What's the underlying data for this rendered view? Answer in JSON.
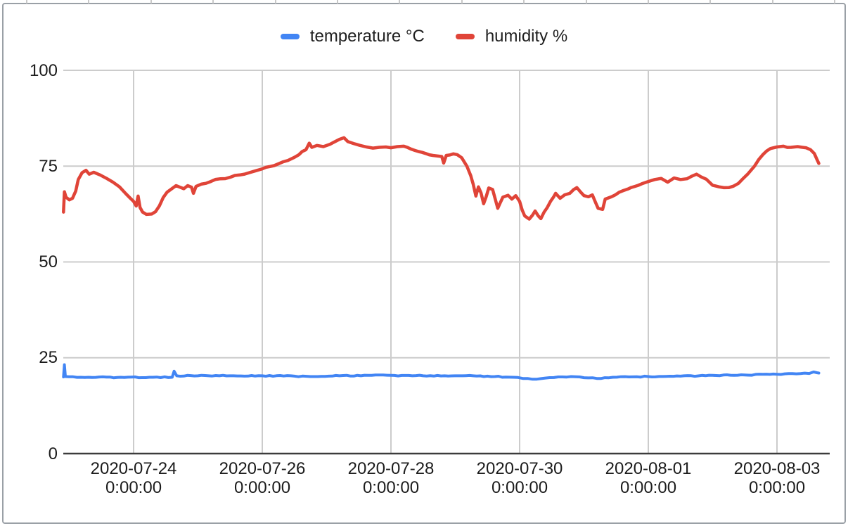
{
  "chart": {
    "background": "#ffffff",
    "border_color": "#9aa0a6",
    "grid_color": "#cccccc",
    "axis_line_color": "#3c3c3c",
    "text_color": "#1c1c1c",
    "spreadsheet_stub_color": "#c9c9c9"
  },
  "legend": {
    "items": [
      {
        "label": "temperature °C",
        "color": "#4285F4"
      },
      {
        "label": "humidity %",
        "color": "#E04438"
      }
    ]
  },
  "chart_data": {
    "type": "line",
    "title": "",
    "xlabel": "",
    "ylabel": "",
    "grid": true,
    "legend_position": "top-center",
    "y_axis_ticks": [
      100,
      75,
      50,
      25,
      0
    ],
    "ylim": [
      0,
      100
    ],
    "x_unit": "days since 2020-07-23 00:00:00",
    "xlim_days": [
      -0.093,
      11.82
    ],
    "x_axis_ticks": [
      {
        "t": 1,
        "line1": "2020-07-24",
        "line2": "0:00:00"
      },
      {
        "t": 3,
        "line1": "2020-07-26",
        "line2": "0:00:00"
      },
      {
        "t": 5,
        "line1": "2020-07-28",
        "line2": "0:00:00"
      },
      {
        "t": 7,
        "line1": "2020-07-30",
        "line2": "0:00:00"
      },
      {
        "t": 9,
        "line1": "2020-08-01",
        "line2": "0:00:00"
      },
      {
        "t": 11,
        "line1": "2020-08-03",
        "line2": "0:00:00"
      }
    ],
    "series": [
      {
        "name": "temperature °C",
        "color": "#4285F4",
        "points": [
          [
            -0.09,
            20.0
          ],
          [
            -0.075,
            23.2
          ],
          [
            -0.06,
            20.1
          ],
          [
            0.3,
            19.9
          ],
          [
            0.8,
            19.9
          ],
          [
            1.3,
            19.9
          ],
          [
            1.6,
            19.9
          ],
          [
            1.63,
            21.5
          ],
          [
            1.67,
            20.3
          ],
          [
            2.0,
            20.3
          ],
          [
            2.5,
            20.3
          ],
          [
            3.0,
            20.3
          ],
          [
            3.5,
            20.2
          ],
          [
            3.75,
            20.1
          ],
          [
            4.2,
            20.3
          ],
          [
            4.7,
            20.4
          ],
          [
            5.0,
            20.4
          ],
          [
            5.5,
            20.3
          ],
          [
            6.0,
            20.3
          ],
          [
            6.5,
            20.2
          ],
          [
            6.9,
            19.9
          ],
          [
            7.05,
            19.6
          ],
          [
            7.2,
            19.4
          ],
          [
            7.4,
            19.7
          ],
          [
            7.6,
            20.0
          ],
          [
            7.8,
            20.1
          ],
          [
            8.0,
            19.8
          ],
          [
            8.2,
            19.6
          ],
          [
            8.45,
            19.9
          ],
          [
            8.7,
            20.0
          ],
          [
            9.0,
            20.1
          ],
          [
            9.5,
            20.2
          ],
          [
            10.0,
            20.4
          ],
          [
            10.5,
            20.5
          ],
          [
            11.0,
            20.7
          ],
          [
            11.3,
            20.8
          ],
          [
            11.5,
            20.9
          ],
          [
            11.57,
            21.3
          ],
          [
            11.62,
            21.1
          ],
          [
            11.65,
            21.0
          ]
        ]
      },
      {
        "name": "humidity %",
        "color": "#E04438",
        "points": [
          [
            -0.09,
            63.0
          ],
          [
            -0.075,
            68.3
          ],
          [
            -0.05,
            66.9
          ],
          [
            0.0,
            66.2
          ],
          [
            0.05,
            66.6
          ],
          [
            0.1,
            68.5
          ],
          [
            0.14,
            71.5
          ],
          [
            0.2,
            73.3
          ],
          [
            0.26,
            73.9
          ],
          [
            0.31,
            72.9
          ],
          [
            0.38,
            73.4
          ],
          [
            0.48,
            72.7
          ],
          [
            0.58,
            71.8
          ],
          [
            0.68,
            70.8
          ],
          [
            0.78,
            69.6
          ],
          [
            0.88,
            67.8
          ],
          [
            0.95,
            66.6
          ],
          [
            1.0,
            65.8
          ],
          [
            1.04,
            64.6
          ],
          [
            1.07,
            67.2
          ],
          [
            1.1,
            64.2
          ],
          [
            1.14,
            63.0
          ],
          [
            1.2,
            62.4
          ],
          [
            1.28,
            62.5
          ],
          [
            1.34,
            63.1
          ],
          [
            1.4,
            64.6
          ],
          [
            1.46,
            66.8
          ],
          [
            1.52,
            68.2
          ],
          [
            1.6,
            69.2
          ],
          [
            1.66,
            69.9
          ],
          [
            1.72,
            69.5
          ],
          [
            1.78,
            69.1
          ],
          [
            1.84,
            69.9
          ],
          [
            1.9,
            69.5
          ],
          [
            1.93,
            67.9
          ],
          [
            1.97,
            69.7
          ],
          [
            2.05,
            70.3
          ],
          [
            2.2,
            71.0
          ],
          [
            2.35,
            71.7
          ],
          [
            2.5,
            72.1
          ],
          [
            2.65,
            72.7
          ],
          [
            2.8,
            73.3
          ],
          [
            2.9,
            73.8
          ],
          [
            3.0,
            74.3
          ],
          [
            3.12,
            74.9
          ],
          [
            3.25,
            75.6
          ],
          [
            3.4,
            76.5
          ],
          [
            3.5,
            77.3
          ],
          [
            3.57,
            78.0
          ],
          [
            3.62,
            78.8
          ],
          [
            3.68,
            79.3
          ],
          [
            3.73,
            81.0
          ],
          [
            3.77,
            79.9
          ],
          [
            3.85,
            80.4
          ],
          [
            3.95,
            80.1
          ],
          [
            4.05,
            80.7
          ],
          [
            4.12,
            81.3
          ],
          [
            4.2,
            82.0
          ],
          [
            4.27,
            82.4
          ],
          [
            4.33,
            81.4
          ],
          [
            4.42,
            80.9
          ],
          [
            4.52,
            80.4
          ],
          [
            4.62,
            80.0
          ],
          [
            4.72,
            79.7
          ],
          [
            4.82,
            79.9
          ],
          [
            4.92,
            80.0
          ],
          [
            5.0,
            79.8
          ],
          [
            5.1,
            80.1
          ],
          [
            5.2,
            80.2
          ],
          [
            5.32,
            79.4
          ],
          [
            5.43,
            78.8
          ],
          [
            5.54,
            78.3
          ],
          [
            5.65,
            77.8
          ],
          [
            5.75,
            77.6
          ],
          [
            5.79,
            77.5
          ],
          [
            5.82,
            75.8
          ],
          [
            5.86,
            77.8
          ],
          [
            5.97,
            78.2
          ],
          [
            6.03,
            78.0
          ],
          [
            6.1,
            77.2
          ],
          [
            6.18,
            75.0
          ],
          [
            6.24,
            72.5
          ],
          [
            6.28,
            70.2
          ],
          [
            6.32,
            67.2
          ],
          [
            6.36,
            69.6
          ],
          [
            6.4,
            68.0
          ],
          [
            6.44,
            65.2
          ],
          [
            6.48,
            67.0
          ],
          [
            6.52,
            69.3
          ],
          [
            6.58,
            68.9
          ],
          [
            6.62,
            66.5
          ],
          [
            6.66,
            64.0
          ],
          [
            6.7,
            65.5
          ],
          [
            6.74,
            66.9
          ],
          [
            6.82,
            67.4
          ],
          [
            6.88,
            66.4
          ],
          [
            6.94,
            67.3
          ],
          [
            7.0,
            65.8
          ],
          [
            7.04,
            63.5
          ],
          [
            7.08,
            62.0
          ],
          [
            7.15,
            61.2
          ],
          [
            7.2,
            62.2
          ],
          [
            7.24,
            63.3
          ],
          [
            7.29,
            62.0
          ],
          [
            7.33,
            61.3
          ],
          [
            7.38,
            63.0
          ],
          [
            7.43,
            64.2
          ],
          [
            7.48,
            65.8
          ],
          [
            7.53,
            67.0
          ],
          [
            7.56,
            67.9
          ],
          [
            7.63,
            66.6
          ],
          [
            7.7,
            67.5
          ],
          [
            7.78,
            67.9
          ],
          [
            7.84,
            68.9
          ],
          [
            7.89,
            69.4
          ],
          [
            7.95,
            68.2
          ],
          [
            8.0,
            67.3
          ],
          [
            8.07,
            67.0
          ],
          [
            8.13,
            67.5
          ],
          [
            8.18,
            65.5
          ],
          [
            8.22,
            64.0
          ],
          [
            8.29,
            63.7
          ],
          [
            8.33,
            66.4
          ],
          [
            8.43,
            67.0
          ],
          [
            8.55,
            68.2
          ],
          [
            8.68,
            69.0
          ],
          [
            8.79,
            69.7
          ],
          [
            8.9,
            70.4
          ],
          [
            9.0,
            71.0
          ],
          [
            9.1,
            71.5
          ],
          [
            9.2,
            71.8
          ],
          [
            9.3,
            70.8
          ],
          [
            9.4,
            71.9
          ],
          [
            9.5,
            71.5
          ],
          [
            9.6,
            71.7
          ],
          [
            9.68,
            72.4
          ],
          [
            9.75,
            72.9
          ],
          [
            9.82,
            72.2
          ],
          [
            9.9,
            71.6
          ],
          [
            10.0,
            70.0
          ],
          [
            10.1,
            69.6
          ],
          [
            10.25,
            69.4
          ],
          [
            10.4,
            70.5
          ],
          [
            10.55,
            73.0
          ],
          [
            10.65,
            75.0
          ],
          [
            10.78,
            78.0
          ],
          [
            10.9,
            79.6
          ],
          [
            11.0,
            80.0
          ],
          [
            11.1,
            80.2
          ],
          [
            11.22,
            79.9
          ],
          [
            11.32,
            80.1
          ],
          [
            11.45,
            79.8
          ],
          [
            11.52,
            79.3
          ],
          [
            11.58,
            78.3
          ],
          [
            11.62,
            76.8
          ],
          [
            11.65,
            75.7
          ]
        ]
      }
    ]
  }
}
